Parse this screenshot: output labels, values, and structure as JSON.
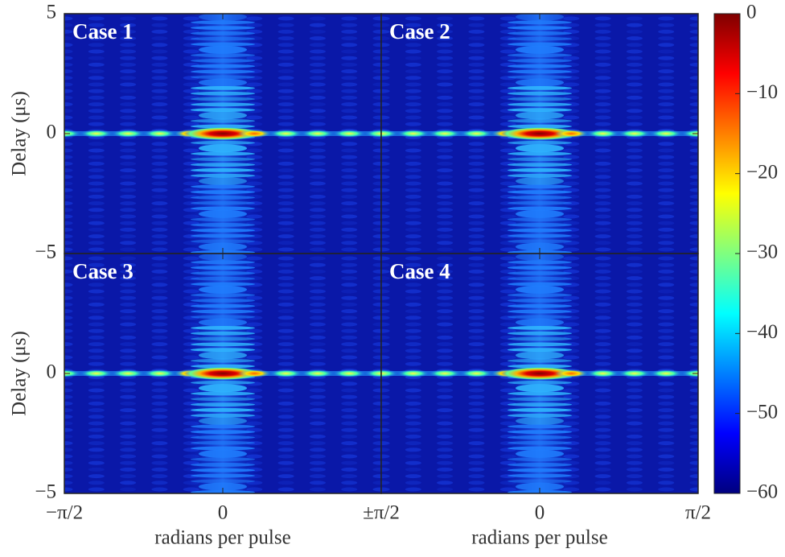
{
  "chart_data": {
    "type": "heatmap",
    "panels": [
      {
        "title": "Case 1"
      },
      {
        "title": "Case 2"
      },
      {
        "title": "Case 3"
      },
      {
        "title": "Case 4"
      }
    ],
    "xlabel": "radians per pulse",
    "ylabel": "Delay (μs)",
    "xlim": [
      -1.5708,
      1.5708
    ],
    "xticks": [
      {
        "value": -1.5708,
        "label": "−π/2"
      },
      0,
      {
        "value": 1.5708,
        "label": "±π/2"
      }
    ],
    "xticks_right": [
      0,
      {
        "value": 1.5708,
        "label": "π/2"
      }
    ],
    "ylim": [
      -5,
      5
    ],
    "yticks": [
      {
        "value": -5,
        "label": "−5"
      },
      0,
      5
    ],
    "colorbar": {
      "lim": [
        -60,
        0
      ],
      "ticks": [
        {
          "value": -60,
          "label": "−60"
        },
        {
          "value": -50,
          "label": "−50"
        },
        {
          "value": -40,
          "label": "−40"
        },
        {
          "value": -30,
          "label": "−30"
        },
        {
          "value": -20,
          "label": "−20"
        },
        {
          "value": -10,
          "label": "−10"
        },
        0
      ]
    }
  }
}
